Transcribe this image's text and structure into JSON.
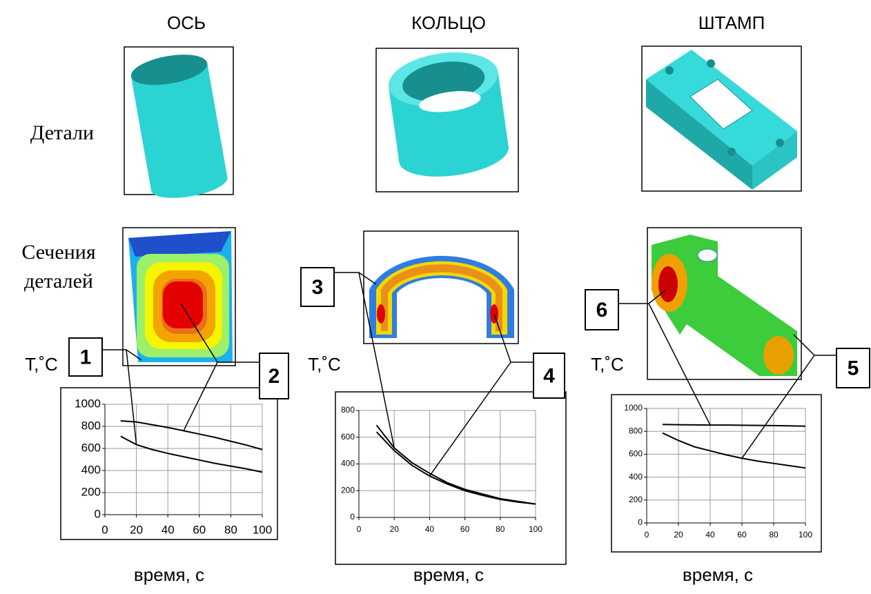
{
  "row_labels": {
    "parts": "Детали",
    "sections": [
      "Сечения",
      "деталей"
    ]
  },
  "chart_data": [
    {
      "type": "line",
      "title": "ОСЬ",
      "x_label": "время, с",
      "y_label": "T,˚C",
      "x": [
        10,
        20,
        30,
        40,
        50,
        60,
        70,
        80,
        90,
        100
      ],
      "series": [
        {
          "name": "1",
          "color": "#000000",
          "values": [
            710,
            635,
            590,
            555,
            525,
            495,
            465,
            440,
            415,
            385
          ]
        },
        {
          "name": "2",
          "color": "#000000",
          "values": [
            850,
            840,
            815,
            790,
            760,
            730,
            700,
            665,
            630,
            590
          ]
        }
      ],
      "xlim": [
        0,
        100
      ],
      "xticks": [
        0,
        20,
        40,
        60,
        80,
        100
      ],
      "ylim": [
        0,
        1000
      ],
      "yticks": [
        0,
        200,
        400,
        600,
        800,
        1000
      ],
      "grid": true
    },
    {
      "type": "line",
      "title": "КОЛЬЦО",
      "x_label": "время, с",
      "y_label": "T,˚C",
      "x": [
        10,
        20,
        30,
        40,
        50,
        60,
        70,
        80,
        90,
        100
      ],
      "series": [
        {
          "name": "3",
          "color": "#000000",
          "values": [
            690,
            520,
            410,
            330,
            260,
            210,
            175,
            140,
            120,
            100
          ]
        },
        {
          "name": "4",
          "color": "#000000",
          "values": [
            640,
            500,
            390,
            310,
            250,
            200,
            165,
            135,
            115,
            100
          ]
        }
      ],
      "xlim": [
        0,
        100
      ],
      "xticks": [
        0,
        20,
        40,
        60,
        80,
        100
      ],
      "ylim": [
        0,
        800
      ],
      "yticks": [
        0,
        200,
        400,
        600,
        800
      ],
      "grid": true
    },
    {
      "type": "line",
      "title": "ШТАМП",
      "x_label": "время, с",
      "y_label": "T,˚C",
      "x": [
        10,
        20,
        30,
        40,
        50,
        60,
        70,
        80,
        90,
        100
      ],
      "series": [
        {
          "name": "6",
          "color": "#000000",
          "values": [
            860,
            858,
            856,
            855,
            855,
            853,
            852,
            850,
            848,
            845
          ]
        },
        {
          "name": "5",
          "color": "#000000",
          "values": [
            785,
            720,
            665,
            630,
            595,
            565,
            540,
            520,
            500,
            480
          ]
        }
      ],
      "xlim": [
        0,
        100
      ],
      "xticks": [
        0,
        20,
        40,
        60,
        80,
        100
      ],
      "ylim": [
        0,
        1000
      ],
      "yticks": [
        0,
        200,
        400,
        600,
        800,
        1000
      ],
      "grid": true
    }
  ]
}
